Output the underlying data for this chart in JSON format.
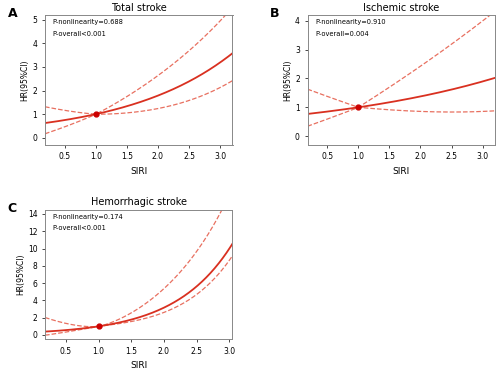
{
  "panels": [
    {
      "label": "A",
      "title": "Total stroke",
      "p_nonlinearity": "P-nonlinearity=0.688",
      "p_overall": "P-overall<0.001",
      "xlim": [
        0.18,
        3.2
      ],
      "ylim": [
        -0.3,
        5.2
      ],
      "yticks": [
        0,
        1,
        2,
        3,
        4,
        5
      ],
      "xticks": [
        0.5,
        1.0,
        1.5,
        2.0,
        2.5,
        3.0
      ],
      "ref_x": 1.0,
      "ref_y": 1.0,
      "curve_type": "exponential_moderate"
    },
    {
      "label": "B",
      "title": "Ischemic stroke",
      "p_nonlinearity": "P-nonlinearity=0.910",
      "p_overall": "P-overall=0.004",
      "xlim": [
        0.18,
        3.2
      ],
      "ylim": [
        -0.3,
        4.2
      ],
      "yticks": [
        0,
        1,
        2,
        3,
        4
      ],
      "xticks": [
        0.5,
        1.0,
        1.5,
        2.0,
        2.5,
        3.0
      ],
      "ref_x": 1.0,
      "ref_y": 1.0,
      "curve_type": "linear_moderate"
    },
    {
      "label": "C",
      "title": "Hemorrhagic stroke",
      "p_nonlinearity": "P-nonlinearity=0.174",
      "p_overall": "P-overall<0.001",
      "xlim": [
        0.18,
        3.05
      ],
      "ylim": [
        -0.5,
        14.5
      ],
      "yticks": [
        0,
        2,
        4,
        6,
        8,
        10,
        12,
        14
      ],
      "xticks": [
        0.5,
        1.0,
        1.5,
        2.0,
        2.5,
        3.0
      ],
      "ref_x": 1.0,
      "ref_y": 1.0,
      "curve_type": "exponential_steep"
    }
  ],
  "line_color": "#D93020",
  "ci_color": "#E87060",
  "ref_dot_color": "#CC0000",
  "bg_color": "#FFFFFF",
  "xlabel": "SIRI",
  "ylabel": "HR(95%CI)"
}
